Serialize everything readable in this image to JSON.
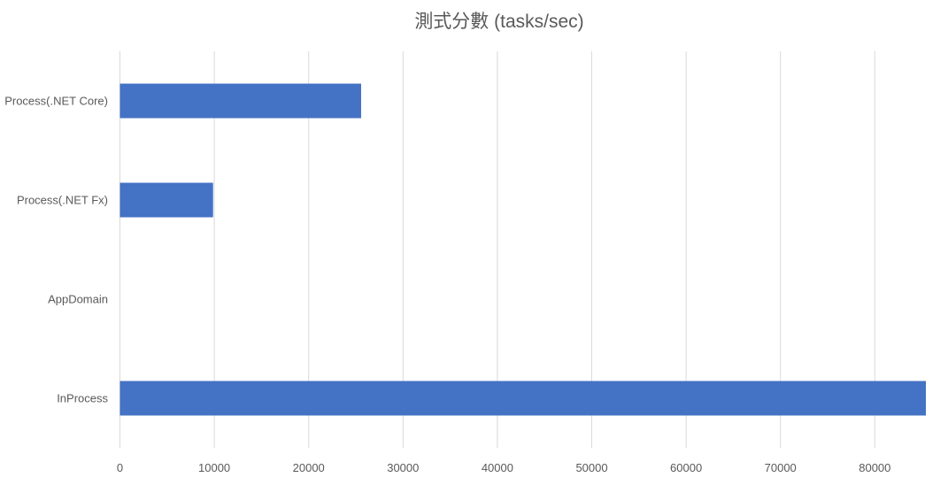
{
  "chart_data": {
    "type": "bar",
    "orientation": "horizontal",
    "title": "測式分數 (tasks/sec)",
    "categories": [
      "Process(.NET Core)",
      "Process(.NET Fx)",
      "AppDomain",
      "InProcess"
    ],
    "values": [
      25560,
      9870,
      0,
      85410
    ],
    "xlabel": "",
    "ylabel": "",
    "xlim": [
      0,
      85410
    ],
    "xticks": [
      0,
      10000,
      20000,
      30000,
      40000,
      50000,
      60000,
      70000,
      80000
    ],
    "grid": "vertical",
    "legend": "none",
    "colors": {
      "bar": "#4472C4",
      "grid": "#D9D9D9",
      "text": "#595959"
    }
  }
}
